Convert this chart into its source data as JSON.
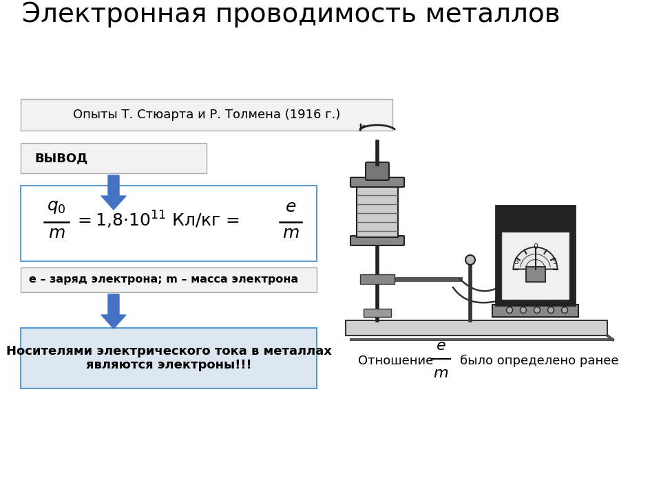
{
  "title": "Электронная проводимость металлов",
  "title_fontsize": 28,
  "experiment_text": "Опыты Т. Стюарта и Р. Толмена (1916 г.)",
  "vyvod_text": "ВЫВОД",
  "note_text": "е – заряд электрона; m – масса электрона",
  "conclusion_text": "Носителями электрического тока в металлах\nявляются электроны!!!",
  "ratio_text1": "Отношение",
  "ratio_text2": "было определено ранее",
  "bg_color": "#ffffff",
  "box_border_gray": "#aaaaaa",
  "box_border_blue": "#5b9bd5",
  "box_fill_white": "#ffffff",
  "box_fill_light": "#f2f2f2",
  "box_fill_blue": "#dce6f1",
  "arrow_color": "#4472c4",
  "text_color": "#000000",
  "dark": "#1a1a1a"
}
